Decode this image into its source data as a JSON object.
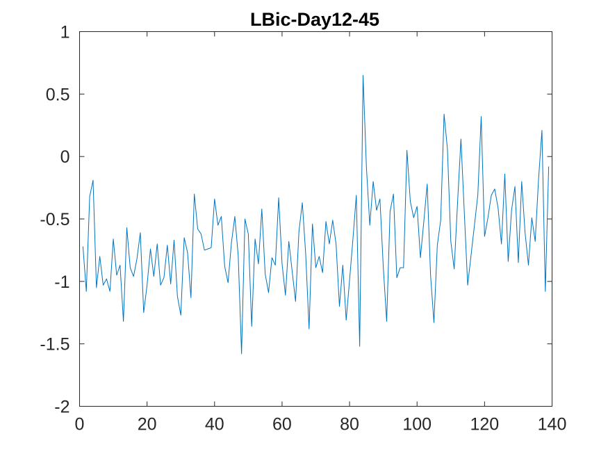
{
  "chart_data": {
    "type": "line",
    "title": "LBic-Day12-45",
    "xlabel": "",
    "ylabel": "",
    "xlim": [
      0,
      140
    ],
    "ylim": [
      -2,
      1
    ],
    "xticks": [
      0,
      20,
      40,
      60,
      80,
      100,
      120,
      140
    ],
    "xtick_labels": [
      "0",
      "20",
      "40",
      "60",
      "80",
      "100",
      "120",
      "140"
    ],
    "yticks": [
      1,
      0.5,
      0,
      -0.5,
      -1,
      -1.5,
      -2
    ],
    "ytick_labels": [
      "1",
      "0.5",
      "0",
      "-0.5",
      "-1",
      "-1.5",
      "-2"
    ],
    "grid": false,
    "line_color": "#0072BD",
    "series": [
      {
        "x": [
          1,
          2,
          3,
          4,
          5,
          6,
          7,
          8,
          9,
          10,
          11,
          12,
          13,
          14,
          15,
          16,
          17,
          18,
          19,
          20,
          21,
          22,
          23,
          24,
          25,
          26,
          27,
          28,
          29,
          30,
          31,
          32,
          33,
          34,
          35,
          36,
          37,
          38,
          39,
          40,
          41,
          42,
          43,
          44,
          45,
          46,
          47,
          48,
          49,
          50,
          51,
          52,
          53,
          54,
          55,
          56,
          57,
          58,
          59,
          60,
          61,
          62,
          63,
          64,
          65,
          66,
          67,
          68,
          69,
          70,
          71,
          72,
          73,
          74,
          75,
          76,
          77,
          78,
          79,
          80,
          81,
          82,
          83,
          84,
          85,
          86,
          87,
          88,
          89,
          90,
          91,
          92,
          93,
          94,
          95,
          96,
          97,
          98,
          99,
          100,
          101,
          102,
          103,
          104,
          105,
          106,
          107,
          108,
          109,
          110,
          111,
          112,
          113,
          114,
          115,
          116,
          117,
          118,
          119,
          120,
          121,
          122,
          123,
          124,
          125,
          126,
          127,
          128,
          129,
          130,
          131,
          132,
          133,
          134,
          135,
          136,
          137,
          138,
          139
        ],
        "values": [
          -0.72,
          -1.08,
          -0.32,
          -0.19,
          -1.05,
          -0.8,
          -1.03,
          -0.98,
          -1.08,
          -0.66,
          -0.95,
          -0.87,
          -1.32,
          -0.57,
          -0.89,
          -0.96,
          -0.82,
          -0.61,
          -1.25,
          -1.03,
          -0.74,
          -0.96,
          -0.7,
          -1.03,
          -0.97,
          -0.71,
          -1.02,
          -0.67,
          -1.12,
          -1.27,
          -0.65,
          -0.77,
          -1.13,
          -0.3,
          -0.58,
          -0.62,
          -0.75,
          -0.74,
          -0.73,
          -0.34,
          -0.55,
          -0.48,
          -0.88,
          -1.01,
          -0.69,
          -0.48,
          -0.79,
          -1.58,
          -0.5,
          -0.62,
          -1.36,
          -0.66,
          -0.86,
          -0.42,
          -0.94,
          -1.09,
          -0.81,
          -0.87,
          -0.33,
          -0.86,
          -1.11,
          -0.68,
          -0.92,
          -1.16,
          -0.6,
          -0.37,
          -0.78,
          -1.38,
          -0.54,
          -0.89,
          -0.8,
          -0.93,
          -0.52,
          -0.7,
          -0.51,
          -0.7,
          -1.2,
          -0.87,
          -1.31,
          -0.99,
          -0.66,
          -0.31,
          -1.52,
          0.65,
          -0.09,
          -0.55,
          -0.2,
          -0.43,
          -0.34,
          -0.89,
          -1.32,
          -0.44,
          -0.3,
          -0.97,
          -0.89,
          -0.89,
          0.05,
          -0.36,
          -0.49,
          -0.4,
          -0.81,
          -0.52,
          -0.22,
          -0.95,
          -1.33,
          -0.71,
          -0.51,
          0.34,
          0.06,
          -0.68,
          -0.9,
          -0.37,
          0.14,
          -0.45,
          -1.03,
          -0.79,
          -0.55,
          -0.31,
          0.32,
          -0.64,
          -0.49,
          -0.31,
          -0.26,
          -0.41,
          -0.7,
          -0.14,
          -0.84,
          -0.43,
          -0.24,
          -0.85,
          -0.2,
          -0.61,
          -0.87,
          -0.49,
          -0.68,
          -0.18,
          0.21,
          -1.08,
          -0.08
        ]
      }
    ]
  }
}
